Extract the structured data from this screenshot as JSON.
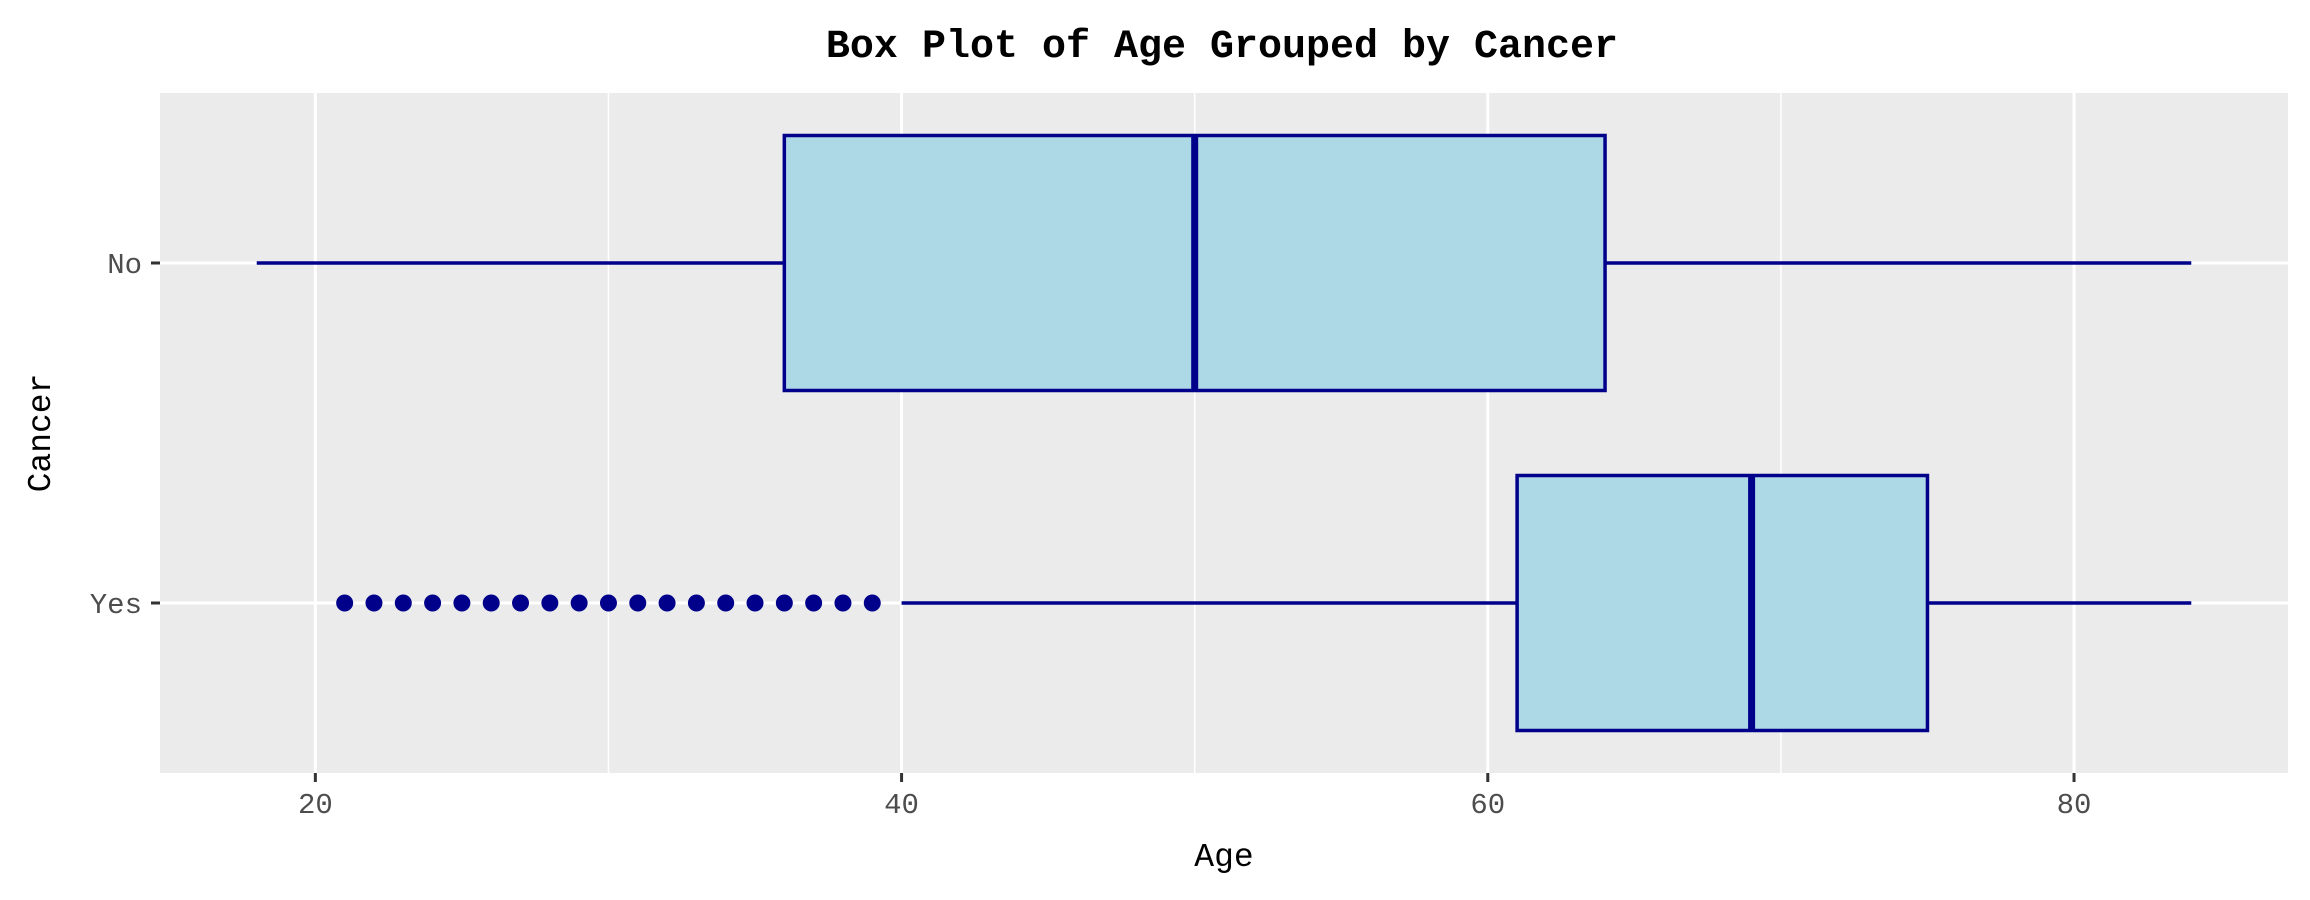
{
  "chart_data": {
    "type": "boxplot",
    "orientation": "horizontal",
    "title": "Box Plot of Age Grouped by Cancer",
    "xlabel": "Age",
    "ylabel": "Cancer",
    "xlim": [
      14.7,
      87.3
    ],
    "x_ticks": [
      20,
      40,
      60,
      80
    ],
    "categories": [
      "No",
      "Yes"
    ],
    "grid": true,
    "legend": "none",
    "colors": {
      "box_fill": "#add8e6",
      "box_stroke": "#00008b",
      "panel_background": "#ebebeb",
      "grid": "#ffffff"
    },
    "boxes": [
      {
        "category": "No",
        "whisker_low": 18,
        "q1": 36,
        "median": 50,
        "q3": 64,
        "whisker_high": 84,
        "outliers": []
      },
      {
        "category": "Yes",
        "whisker_low": 40,
        "q1": 61,
        "median": 69,
        "q3": 75,
        "whisker_high": 84,
        "outliers": [
          21,
          22,
          23,
          24,
          25,
          26,
          27,
          28,
          29,
          30,
          31,
          32,
          33,
          34,
          35,
          36,
          37,
          38,
          39
        ]
      }
    ]
  }
}
